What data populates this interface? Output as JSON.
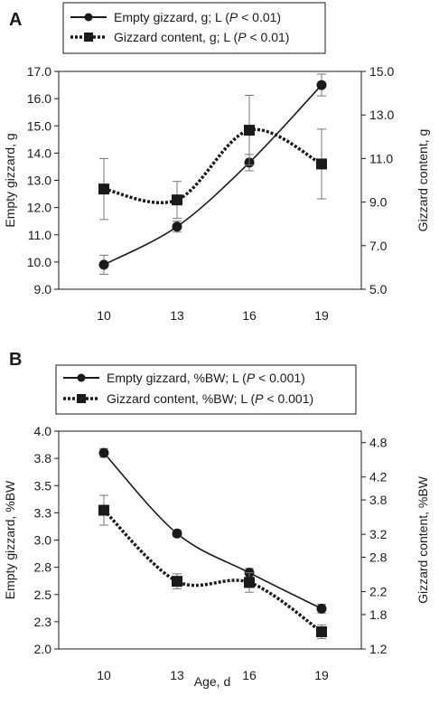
{
  "panels": [
    {
      "letter": "A"
    },
    {
      "letter": "B"
    }
  ],
  "chart_data": [
    {
      "type": "line",
      "panel": "A",
      "categories": [
        "10",
        "13",
        "16",
        "19"
      ],
      "xlabel": "",
      "ylabel_left": "Empty gizzard, g",
      "ylabel_right": "Gizzard content, g",
      "ylim_left": [
        9.0,
        17.0
      ],
      "yticks_left": [
        "9.0",
        "10.0",
        "11.0",
        "12.0",
        "13.0",
        "14.0",
        "15.0",
        "16.0",
        "17.0"
      ],
      "ylim_right": [
        5.0,
        15.0
      ],
      "yticks_right": [
        "5.0",
        "7.0",
        "9.0",
        "11.0",
        "13.0",
        "15.0"
      ],
      "legend_position": "top",
      "series": [
        {
          "legend_pre": "Empty gizzard, g; L (",
          "legend_p": "P",
          "legend_post": " < 0.01)",
          "axis": "left",
          "marker": "circle",
          "line": "solid",
          "values": [
            9.9,
            11.3,
            13.65,
            16.5
          ],
          "errors": [
            0.35,
            0.2,
            0.3,
            0.4
          ]
        },
        {
          "legend_pre": "Gizzard content, g; L (",
          "legend_p": "P",
          "legend_post": " < 0.01)",
          "axis": "right",
          "marker": "square",
          "line": "dotted",
          "values": [
            9.6,
            9.1,
            12.3,
            10.75
          ],
          "errors": [
            1.4,
            0.85,
            1.6,
            1.6
          ]
        }
      ]
    },
    {
      "type": "line",
      "panel": "B",
      "categories": [
        "10",
        "13",
        "16",
        "19"
      ],
      "xlabel": "Age, d",
      "ylabel_left": "Empty gizzard, %BW",
      "ylabel_right": "Gizzard content, %BW",
      "ylim_left": [
        2.0,
        4.0
      ],
      "yticks_left": [
        "2.0",
        "2.3",
        "2.5",
        "2.8",
        "3.0",
        "3.3",
        "3.5",
        "3.8",
        "4.0"
      ],
      "ylim_right": [
        1.2,
        5.0
      ],
      "yticks_right": [
        "1.2",
        "1.8",
        "2.2",
        "2.8",
        "3.2",
        "3.8",
        "4.2",
        "4.8"
      ],
      "legend_position": "top",
      "series": [
        {
          "legend_pre": "Empty gizzard, %BW; L (",
          "legend_p": "P",
          "legend_post": " < 0.001)",
          "axis": "left",
          "marker": "circle",
          "line": "solid",
          "values": [
            3.8,
            3.06,
            2.7,
            2.37
          ],
          "errors": [
            0.04,
            0.03,
            0.04,
            0.04
          ]
        },
        {
          "legend_pre": "Gizzard content, %BW; L (",
          "legend_p": "P",
          "legend_post": " < 0.001)",
          "axis": "right",
          "marker": "square",
          "line": "dotted",
          "values": [
            3.62,
            2.38,
            2.36,
            1.5
          ],
          "errors": [
            0.26,
            0.13,
            0.17,
            0.12
          ]
        }
      ]
    }
  ]
}
